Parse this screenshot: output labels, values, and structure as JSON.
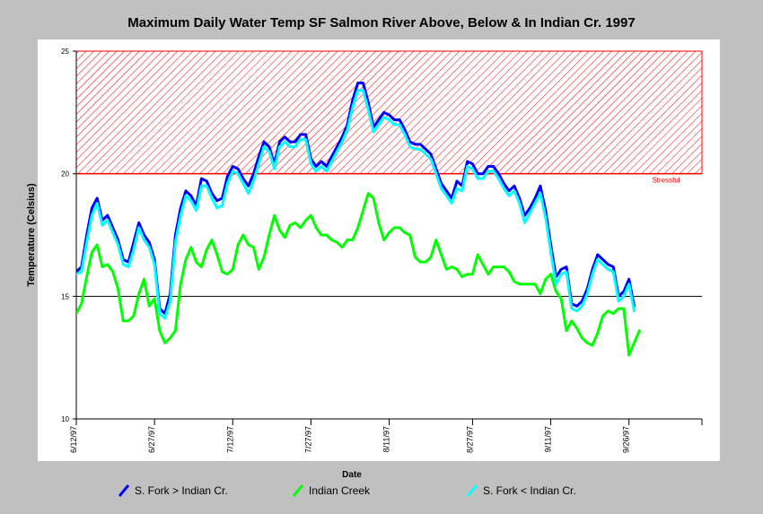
{
  "chart_data": {
    "type": "line",
    "title": "Maximum Daily Water Temp SF Salmon River Above, Below & In Indian Cr. 1997",
    "xlabel": "Date",
    "ylabel": "Temperature (Celsius)",
    "ylim": [
      10,
      25
    ],
    "xlim": [
      0,
      120
    ],
    "yticks": [
      "10",
      "15",
      "20",
      "25"
    ],
    "xticks": [
      {
        "day": 0,
        "label": "6/12/97"
      },
      {
        "day": 15,
        "label": "6/27/97"
      },
      {
        "day": 30,
        "label": "7/12/97"
      },
      {
        "day": 45,
        "label": "7/27/97"
      },
      {
        "day": 60,
        "label": "8/11/97"
      },
      {
        "day": 76,
        "label": "8/27/97"
      },
      {
        "day": 91,
        "label": "9/11/97"
      },
      {
        "day": 106,
        "label": "9/26/97"
      }
    ],
    "reference_line": 15,
    "threshold": {
      "from": 20,
      "to": 25,
      "label": "Stressful",
      "color": "#ff0000"
    },
    "series": [
      {
        "name": "S. Fork > Indian Cr.",
        "color": "#0000ff",
        "values": [
          16.0,
          16.2,
          17.5,
          18.6,
          19.0,
          18.1,
          18.3,
          17.8,
          17.3,
          16.5,
          16.4,
          17.2,
          18.0,
          17.5,
          17.2,
          16.5,
          14.5,
          14.3,
          15.1,
          17.5,
          18.6,
          19.3,
          19.1,
          18.7,
          19.8,
          19.7,
          19.2,
          18.9,
          19.0,
          19.9,
          20.3,
          20.2,
          19.8,
          19.5,
          20.0,
          20.7,
          21.3,
          21.1,
          20.4,
          21.3,
          21.5,
          21.3,
          21.3,
          21.6,
          21.6,
          20.6,
          20.3,
          20.5,
          20.3,
          20.7,
          21.1,
          21.5,
          22.0,
          23.0,
          23.7,
          23.7,
          22.9,
          21.9,
          22.2,
          22.5,
          22.4,
          22.2,
          22.2,
          21.8,
          21.3,
          21.2,
          21.2,
          21.0,
          20.8,
          20.2,
          19.6,
          19.3,
          19.0,
          19.7,
          19.5,
          20.5,
          20.4,
          20.0,
          20.0,
          20.3,
          20.3,
          20.0,
          19.6,
          19.3,
          19.5,
          19.0,
          18.3,
          18.6,
          19.0,
          19.5,
          18.5,
          17.1,
          15.8,
          16.1,
          16.2,
          14.7,
          14.6,
          14.8,
          15.3,
          16.1,
          16.7,
          16.5,
          16.3,
          16.2,
          15.0,
          15.2,
          15.7,
          14.6
        ],
        "start_day": 0
      },
      {
        "name": "Indian Creek",
        "color": "#00ff00",
        "values": [
          14.3,
          14.7,
          15.8,
          16.8,
          17.1,
          16.2,
          16.3,
          16.0,
          15.3,
          14.0,
          14.0,
          14.2,
          15.1,
          15.7,
          14.6,
          14.9,
          13.6,
          13.1,
          13.3,
          13.6,
          15.5,
          16.5,
          17.0,
          16.4,
          16.2,
          16.9,
          17.3,
          16.7,
          16.0,
          15.9,
          16.1,
          17.1,
          17.5,
          17.1,
          17.0,
          16.1,
          16.6,
          17.5,
          18.3,
          17.7,
          17.4,
          17.9,
          18.0,
          17.8,
          18.1,
          18.3,
          17.8,
          17.5,
          17.5,
          17.3,
          17.2,
          17.0,
          17.3,
          17.3,
          17.8,
          18.5,
          19.2,
          19.0,
          18.0,
          17.3,
          17.6,
          17.8,
          17.8,
          17.6,
          17.5,
          16.6,
          16.4,
          16.4,
          16.6,
          17.3,
          16.7,
          16.1,
          16.2,
          16.1,
          15.8,
          15.9,
          15.9,
          16.7,
          16.3,
          15.9,
          16.2,
          16.2,
          16.2,
          16.0,
          15.6,
          15.5,
          15.5,
          15.5,
          15.5,
          15.1,
          15.7,
          15.9,
          15.2,
          14.9,
          13.6,
          14.0,
          13.7,
          13.3,
          13.1,
          13.0,
          13.5,
          14.2,
          14.4,
          14.3,
          14.5,
          14.5,
          12.6,
          13.1,
          13.6
        ],
        "start_day": 0
      },
      {
        "name": "S. Fork < Indian Cr.",
        "color": "#00ffff",
        "values": [
          15.9,
          16.0,
          17.2,
          18.3,
          18.8,
          17.9,
          18.1,
          17.6,
          17.1,
          16.3,
          16.2,
          16.9,
          17.8,
          17.3,
          17.0,
          16.3,
          14.3,
          14.1,
          14.8,
          17.2,
          18.3,
          19.1,
          18.9,
          18.5,
          19.5,
          19.5,
          19.0,
          18.6,
          18.7,
          19.6,
          20.1,
          20.0,
          19.6,
          19.2,
          19.7,
          20.4,
          21.1,
          20.9,
          20.2,
          21.1,
          21.3,
          21.1,
          21.1,
          21.4,
          21.4,
          20.4,
          20.1,
          20.3,
          20.1,
          20.5,
          20.9,
          21.3,
          21.8,
          22.7,
          23.4,
          23.4,
          22.6,
          21.7,
          22.0,
          22.3,
          22.2,
          22.0,
          22.0,
          21.6,
          21.1,
          21.0,
          21.0,
          20.8,
          20.6,
          20.0,
          19.4,
          19.1,
          18.8,
          19.4,
          19.3,
          20.3,
          20.2,
          19.8,
          19.8,
          20.1,
          20.1,
          19.8,
          19.4,
          19.1,
          19.3,
          18.8,
          18.0,
          18.4,
          18.8,
          19.2,
          18.2,
          16.8,
          15.5,
          15.9,
          16.0,
          14.5,
          14.4,
          14.6,
          15.1,
          15.9,
          16.5,
          16.3,
          16.1,
          16.0,
          14.8,
          15.0,
          15.5,
          14.4
        ],
        "start_day": 0
      }
    ]
  },
  "legend": {
    "items": [
      "S. Fork > Indian Cr.",
      "Indian Creek",
      "S. Fork < Indian Cr."
    ]
  },
  "colors": {
    "background": "#c0c0c0",
    "plot_background": "#ffffff"
  }
}
